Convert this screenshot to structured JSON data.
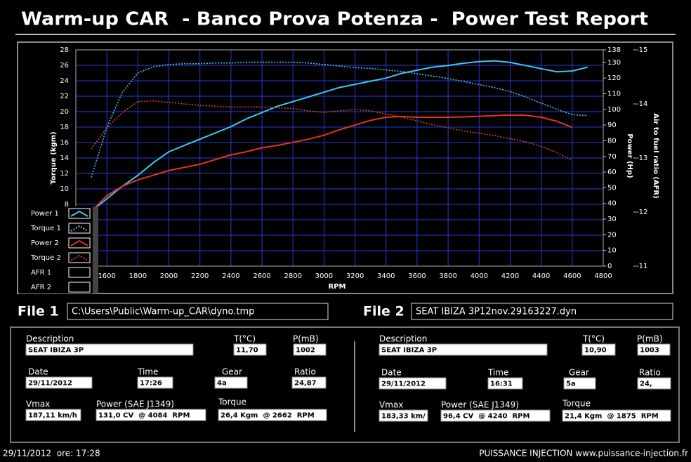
{
  "header": {
    "title": "Warm-up CAR  - Banco Prova Potenza -  Power Test Report"
  },
  "chart_data": {
    "type": "line",
    "xlabel": "RPM",
    "ylabel": "Torque (kgm)",
    "y2label": "Power (Hp)",
    "y3label": "Air to fuel ratio (AFR)",
    "x": [
      1500,
      1600,
      1700,
      1800,
      1900,
      2000,
      2100,
      2200,
      2300,
      2400,
      2500,
      2600,
      2700,
      2800,
      2900,
      3000,
      3100,
      3200,
      3300,
      3400,
      3500,
      3600,
      3700,
      3800,
      3900,
      4000,
      4100,
      4200,
      4300,
      4400,
      4500,
      4600,
      4700
    ],
    "xlim": [
      1400,
      4800
    ],
    "xticks": [
      1600,
      1800,
      2000,
      2200,
      2400,
      2600,
      2800,
      3000,
      3200,
      3400,
      3600,
      3800,
      4000,
      4200,
      4400,
      4600,
      4800
    ],
    "ylim": [
      0,
      28
    ],
    "yticks": [
      0,
      2,
      4,
      6,
      8,
      10,
      12,
      14,
      16,
      18,
      20,
      22,
      24,
      26,
      28
    ],
    "y2lim": [
      0,
      138
    ],
    "y2ticks": [
      0,
      10,
      20,
      30,
      40,
      50,
      60,
      70,
      80,
      90,
      100,
      110,
      120,
      130,
      138
    ],
    "y3lim": [
      -11,
      -15
    ],
    "y3ticks": [
      -15,
      -14,
      -13,
      -12,
      -11
    ],
    "grid": true,
    "grid_color": "#2a3ad8",
    "series": [
      {
        "name": "Power 1",
        "color": "#3ec6f2",
        "style": "solid",
        "axis": "y2",
        "values": [
          35,
          43,
          51,
          58,
          66,
          73,
          77,
          81,
          85,
          89,
          94,
          98,
          102,
          105,
          108,
          111,
          114,
          116,
          118,
          120,
          123,
          125,
          127,
          128,
          129.5,
          130.5,
          131,
          130,
          128,
          126,
          124,
          124.5,
          127
        ]
      },
      {
        "name": "Torque 1",
        "color": "#3ec6f2",
        "style": "dotted",
        "axis": "y",
        "values": [
          11.5,
          18,
          22.5,
          25,
          25.8,
          26.1,
          26.2,
          26.2,
          26.3,
          26.3,
          26.4,
          26.4,
          26.4,
          26.4,
          26.3,
          26.1,
          25.9,
          25.7,
          25.6,
          25.4,
          25.2,
          24.9,
          24.6,
          24.3,
          23.9,
          23.5,
          23.1,
          22.6,
          21.9,
          21.1,
          20.3,
          19.6,
          19.5
        ]
      },
      {
        "name": "Power 2",
        "color": "#e8321e",
        "style": "solid",
        "axis": "y2",
        "values": [
          35,
          45,
          51,
          55,
          58,
          61,
          63,
          65,
          68,
          71,
          73,
          75.5,
          77,
          79,
          81,
          83.5,
          87,
          90,
          93,
          95,
          95.5,
          95,
          95,
          95,
          95.2,
          95.6,
          96,
          96.4,
          96.3,
          95,
          92.5,
          88.5,
          null
        ]
      },
      {
        "name": "Torque 2",
        "color": "#c8462a",
        "style": "dotted",
        "axis": "y",
        "values": [
          15.2,
          17.9,
          19.9,
          21.3,
          21.4,
          21.2,
          21.0,
          20.8,
          20.7,
          20.6,
          20.6,
          20.6,
          20.5,
          20.4,
          20.1,
          19.9,
          20.1,
          20.3,
          20.1,
          19.7,
          19.3,
          18.8,
          18.3,
          17.9,
          17.5,
          17.2,
          16.9,
          16.5,
          16.1,
          15.5,
          14.7,
          13.7,
          null
        ]
      },
      {
        "name": "AFR 1",
        "axis": "y3",
        "values": [
          null,
          null,
          null,
          null,
          null,
          null,
          null,
          null,
          null,
          null,
          null,
          null,
          null,
          null,
          null,
          null,
          null,
          null,
          null,
          null,
          null,
          null,
          null,
          null,
          null,
          null,
          null,
          null,
          null,
          null,
          null,
          null,
          null
        ]
      },
      {
        "name": "AFR 2",
        "axis": "y3",
        "values": [
          null,
          null,
          null,
          null,
          null,
          null,
          null,
          null,
          null,
          null,
          null,
          null,
          null,
          null,
          null,
          null,
          null,
          null,
          null,
          null,
          null,
          null,
          null,
          null,
          null,
          null,
          null,
          null,
          null,
          null,
          null,
          null,
          null
        ]
      }
    ]
  },
  "files": [
    {
      "label": "File 1",
      "path": "C:\\Users\\Public\\Warm-up_CAR\\dyno.tmp"
    },
    {
      "label": "File 2",
      "path": "SEAT IBIZA 3P12nov.29163227.dyn"
    }
  ],
  "reports": [
    {
      "fields": [
        {
          "label": "Description",
          "value": "SEAT IBIZA 3P"
        },
        {
          "label": "T(°C)",
          "value": "11,70"
        },
        {
          "label": "P(mB)",
          "value": "1002"
        },
        {
          "label": "Date",
          "value": "29/11/2012"
        },
        {
          "label": "Time",
          "value": "17:26"
        },
        {
          "label": "Gear",
          "value": "4a"
        },
        {
          "label": "Ratio",
          "value": "24,87"
        },
        {
          "label": "Vmax",
          "value": "187,11 km/h"
        },
        {
          "label": "Power (SAE J1349)",
          "value": "131,0 CV  @ 4084  RPM"
        },
        {
          "label": "Torque",
          "value": "26,4 Kgm  @ 2662  RPM"
        }
      ]
    },
    {
      "fields": [
        {
          "label": "Description",
          "value": "SEAT IBIZA 3P"
        },
        {
          "label": "T(°C)",
          "value": "10,90"
        },
        {
          "label": "P(mB)",
          "value": "1003"
        },
        {
          "label": "Date",
          "value": "29/11/2012"
        },
        {
          "label": "Time",
          "value": "16:31"
        },
        {
          "label": "Gear",
          "value": "5a"
        },
        {
          "label": "Ratio",
          "value": "24,"
        },
        {
          "label": "Vmax",
          "value": "183,33 km/"
        },
        {
          "label": "Power (SAE J1349)",
          "value": "96,4 CV  @ 4240  RPM"
        },
        {
          "label": "Torque",
          "value": "21,4 Kgm  @ 1875  RPM"
        }
      ]
    }
  ],
  "footer": {
    "left": "29/11/2012  ore: 17:28",
    "right": "PUISSANCE INJECTION www.puissance-injection.fr"
  }
}
